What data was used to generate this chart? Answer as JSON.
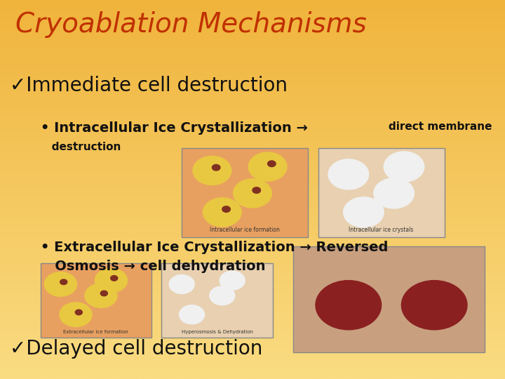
{
  "title": "Cryoablation Mechanisms",
  "title_color": "#C03000",
  "title_fontsize": 28,
  "bg_color": "#F5C060",
  "bg_top": "#F0B840",
  "bg_bottom": "#F5D080",
  "text_color": "#111111",
  "check1": "✓Immediate cell destruction",
  "check1_fontsize": 20,
  "bullet1a": "• Intracellular Ice Crystallization → ",
  "bullet1b": "direct membrane",
  "bullet1c": "destruction",
  "bullet1_fontsize": 14,
  "bullet1_small_fontsize": 11,
  "bullet2": "• Extracellular Ice Crystallization → Reversed",
  "bullet2b": "   Osmosis → cell dehydration",
  "bullet2_fontsize": 14,
  "check2": "✓Delayed cell destruction",
  "check2_fontsize": 20,
  "img1_label": "Intracellular ice formation",
  "img2_label": "Intracellular ice crystals",
  "img3_label": "Extracellular ice formation",
  "img4_label": "Hyperosmosis & Dehydration",
  "figsize": [
    7.2,
    5.4
  ],
  "dpi": 100
}
